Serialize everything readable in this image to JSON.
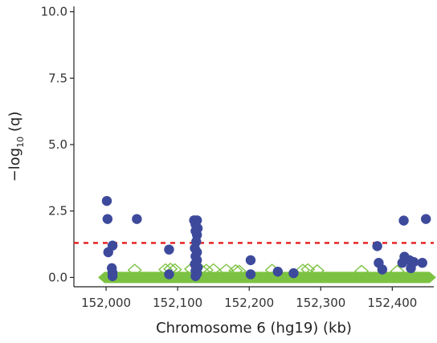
{
  "chart_data": {
    "type": "scatter",
    "xlabel": "Chromosome 6 (hg19) (kb)",
    "ylabel_prefix": "−log",
    "ylabel_sub": "10",
    "ylabel_suffix": " (q)",
    "xlim": [
      151955,
      152458
    ],
    "ylim": [
      -0.35,
      10.2
    ],
    "x_ticks": [
      152000,
      152100,
      152200,
      152300,
      152400
    ],
    "x_tick_labels": [
      "152,000",
      "152,100",
      "152,200",
      "152,300",
      "152,400"
    ],
    "y_ticks": [
      0.0,
      2.5,
      5.0,
      7.5,
      10.0
    ],
    "y_tick_labels": [
      "0.0",
      "2.5",
      "5.0",
      "7.5",
      "10.0"
    ],
    "threshold": {
      "y": 1.3,
      "color": "#e41a1c",
      "style": "dashed"
    },
    "grid": false,
    "colors": {
      "significant": "#3d4a9c",
      "background": "#7cc242"
    },
    "series": [
      {
        "marker": "circle",
        "color": "#3d4a9c",
        "points": [
          [
            152001,
            2.88
          ],
          [
            152002,
            2.2
          ],
          [
            152003,
            0.95
          ],
          [
            152009,
            1.2
          ],
          [
            152008,
            0.35
          ],
          [
            152009,
            0.18
          ],
          [
            152009,
            0.05
          ],
          [
            152043,
            2.2
          ],
          [
            152088,
            1.05
          ],
          [
            152088,
            0.12
          ],
          [
            152123,
            2.15
          ],
          [
            152127,
            2.15
          ],
          [
            152125,
            2.0
          ],
          [
            152128,
            1.85
          ],
          [
            152125,
            1.75
          ],
          [
            152127,
            1.6
          ],
          [
            152126,
            1.35
          ],
          [
            152124,
            1.1
          ],
          [
            152127,
            0.95
          ],
          [
            152125,
            0.8
          ],
          [
            152127,
            0.65
          ],
          [
            152124,
            0.5
          ],
          [
            152128,
            0.38
          ],
          [
            152125,
            0.25
          ],
          [
            152127,
            0.15
          ],
          [
            152125,
            0.05
          ],
          [
            152202,
            0.65
          ],
          [
            152202,
            0.12
          ],
          [
            152240,
            0.22
          ],
          [
            152262,
            0.16
          ],
          [
            152379,
            1.18
          ],
          [
            152381,
            0.55
          ],
          [
            152386,
            0.3
          ],
          [
            152416,
            2.14
          ],
          [
            152414,
            0.55
          ],
          [
            152417,
            0.78
          ],
          [
            152424,
            0.65
          ],
          [
            152430,
            0.58
          ],
          [
            152426,
            0.35
          ],
          [
            152442,
            0.55
          ],
          [
            152447,
            2.2
          ]
        ]
      },
      {
        "marker": "diamond",
        "color": "#7cc242",
        "filled_band": [
          152000,
          152450
        ],
        "points": [
          [
            152040,
            0.28
          ],
          [
            152083,
            0.3
          ],
          [
            152090,
            0.32
          ],
          [
            152096,
            0.3
          ],
          [
            152119,
            0.32
          ],
          [
            152132,
            0.3
          ],
          [
            152140,
            0.28
          ],
          [
            152150,
            0.3
          ],
          [
            152168,
            0.28
          ],
          [
            152181,
            0.26
          ],
          [
            152186,
            0.24
          ],
          [
            152232,
            0.28
          ],
          [
            152275,
            0.28
          ],
          [
            152282,
            0.3
          ],
          [
            152295,
            0.26
          ],
          [
            152357,
            0.24
          ],
          [
            152407,
            0.24
          ]
        ]
      }
    ]
  }
}
